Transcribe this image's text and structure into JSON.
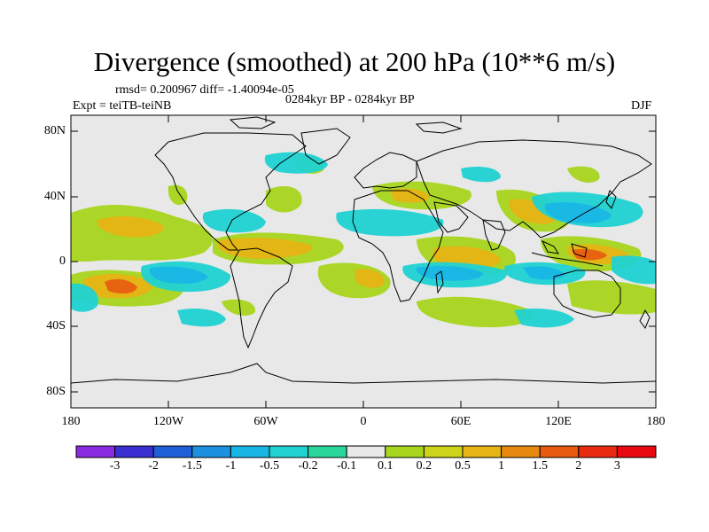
{
  "title": "Divergence (smoothed) at 200 hPa (10**6 m/s)",
  "stats": "rmsd= 0.200967 diff= -1.40094e-05",
  "expt": "Expt = teiTB-teiNB",
  "period": "0284kyr BP - 0284kyr BP",
  "season": "DJF",
  "lat_ticks": [
    "80N",
    "40N",
    "0",
    "40S",
    "80S"
  ],
  "lon_ticks": [
    "180",
    "120W",
    "60W",
    "0",
    "60E",
    "120E",
    "180"
  ],
  "colorbar": {
    "labels": [
      "-3",
      "-2",
      "-1.5",
      "-1",
      "-0.5",
      "-0.2",
      "-0.1",
      "0.1",
      "0.2",
      "0.5",
      "1",
      "1.5",
      "2",
      "3"
    ],
    "colors": [
      "#8a2be2",
      "#3a2fd0",
      "#1f5fd8",
      "#1e90e0",
      "#19b7e6",
      "#20d2d2",
      "#2ad69a",
      "#e8e8e8",
      "#a8d61e",
      "#cdd21a",
      "#e6b414",
      "#e88a10",
      "#e85a10",
      "#e82a10",
      "#e80a10"
    ]
  }
}
